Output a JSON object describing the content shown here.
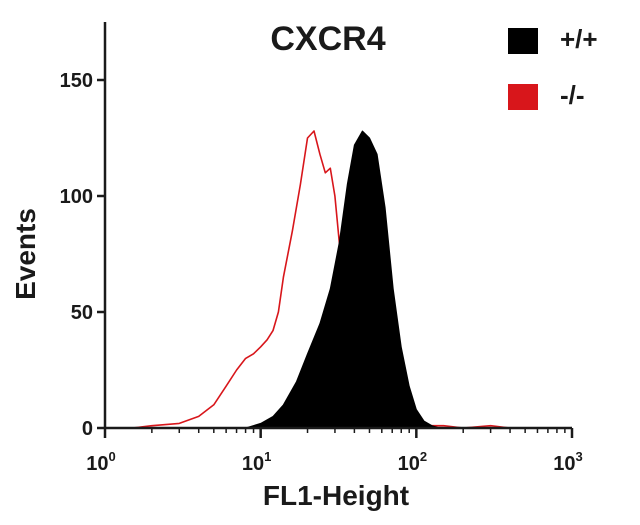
{
  "chart_data": {
    "type": "area",
    "title": "CXCR4",
    "xlabel": "FL1-Height",
    "ylabel": "Events",
    "xscale": "log",
    "xlim": [
      1,
      1000
    ],
    "ylim": [
      0,
      175
    ],
    "yticks": [
      {
        "value": 0,
        "label": "0"
      },
      {
        "value": 50,
        "label": "50"
      },
      {
        "value": 100,
        "label": "100"
      },
      {
        "value": 150,
        "label": "150"
      }
    ],
    "xticks": [
      {
        "value": 1,
        "base": "10",
        "exp": "0"
      },
      {
        "value": 10,
        "base": "10",
        "exp": "1"
      },
      {
        "value": 100,
        "base": "10",
        "exp": "2"
      },
      {
        "value": 1000,
        "base": "10",
        "exp": "3"
      }
    ],
    "legend_position": "top-right",
    "series": [
      {
        "name": "+/+",
        "color": "#000000",
        "style": "filled",
        "x": [
          8,
          10,
          12,
          14,
          17,
          20,
          24,
          28,
          32,
          36,
          40,
          45,
          50,
          56,
          63,
          71,
          80,
          90,
          100,
          112,
          126,
          141
        ],
        "y": [
          0,
          2,
          5,
          10,
          20,
          32,
          45,
          60,
          80,
          105,
          122,
          128,
          125,
          118,
          95,
          60,
          35,
          18,
          8,
          3,
          1,
          0
        ]
      },
      {
        "name": "-/-",
        "color": "#d8161b",
        "style": "outline",
        "x": [
          1.5,
          2,
          3,
          4,
          5,
          6,
          7,
          8,
          9,
          10,
          11,
          12,
          13,
          14,
          16,
          18,
          20,
          22,
          24,
          26,
          28,
          30,
          32,
          35,
          38,
          42,
          46,
          50,
          55,
          60,
          70,
          80,
          100,
          150,
          200,
          300,
          400
        ],
        "y": [
          0,
          1,
          2,
          5,
          10,
          18,
          25,
          30,
          32,
          35,
          38,
          42,
          50,
          65,
          85,
          105,
          125,
          128,
          118,
          110,
          112,
          100,
          80,
          60,
          40,
          25,
          15,
          8,
          5,
          3,
          2,
          1,
          1,
          1,
          0,
          1,
          0
        ]
      }
    ]
  }
}
